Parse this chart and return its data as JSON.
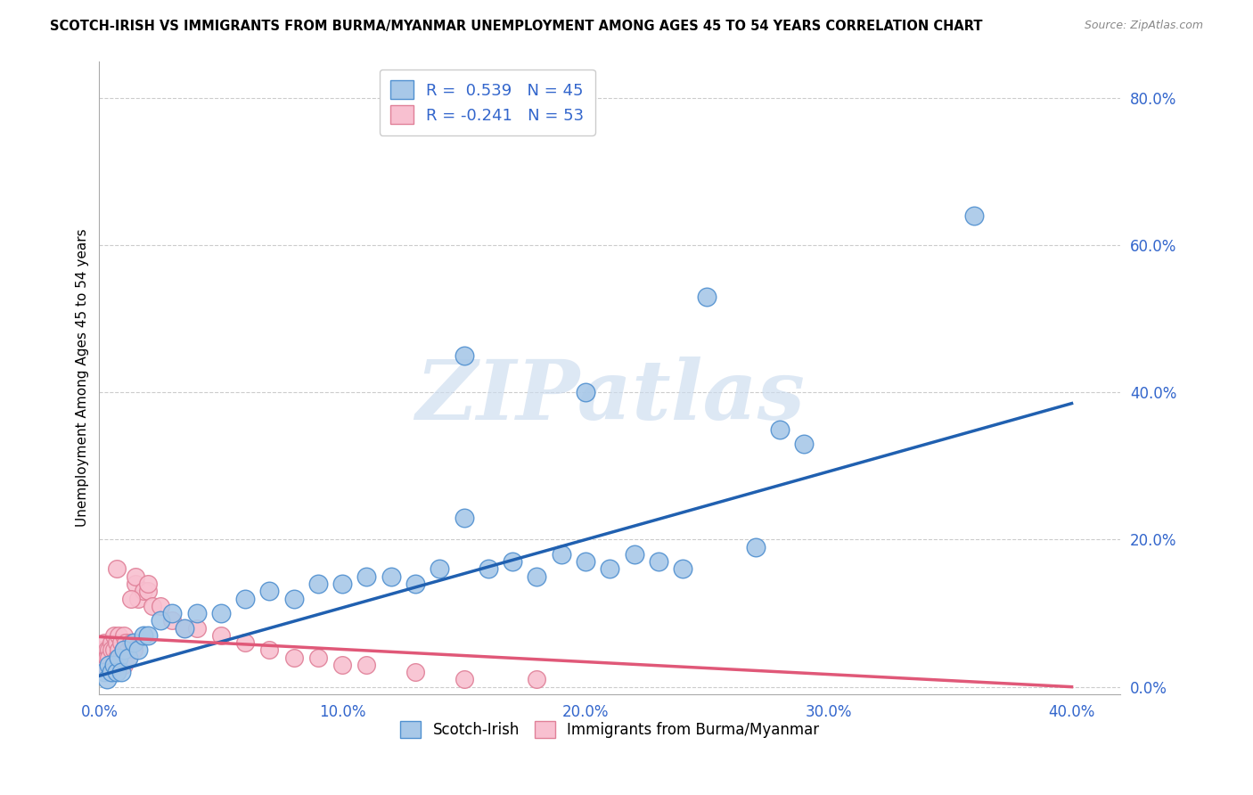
{
  "title": "SCOTCH-IRISH VS IMMIGRANTS FROM BURMA/MYANMAR UNEMPLOYMENT AMONG AGES 45 TO 54 YEARS CORRELATION CHART",
  "source": "Source: ZipAtlas.com",
  "ylabel": "Unemployment Among Ages 45 to 54 years",
  "xlim": [
    0.0,
    0.42
  ],
  "ylim": [
    -0.01,
    0.85
  ],
  "xticks": [
    0.0,
    0.1,
    0.2,
    0.3,
    0.4
  ],
  "yticks_right": [
    0.0,
    0.2,
    0.4,
    0.6,
    0.8
  ],
  "blue_R": 0.539,
  "blue_N": 45,
  "pink_R": -0.241,
  "pink_N": 53,
  "blue_color": "#a8c8e8",
  "blue_edge_color": "#5090d0",
  "blue_line_color": "#2060b0",
  "pink_color": "#f8c0d0",
  "pink_edge_color": "#e08098",
  "pink_line_color": "#e05878",
  "watermark": "ZIPatlas",
  "blue_scatter_x": [
    0.002,
    0.003,
    0.004,
    0.005,
    0.006,
    0.007,
    0.008,
    0.009,
    0.01,
    0.012,
    0.014,
    0.016,
    0.018,
    0.02,
    0.025,
    0.03,
    0.035,
    0.04,
    0.05,
    0.06,
    0.07,
    0.08,
    0.09,
    0.1,
    0.11,
    0.12,
    0.13,
    0.14,
    0.15,
    0.16,
    0.17,
    0.18,
    0.19,
    0.2,
    0.21,
    0.22,
    0.23,
    0.24,
    0.27,
    0.29,
    0.15,
    0.2,
    0.25,
    0.28,
    0.36
  ],
  "blue_scatter_y": [
    0.02,
    0.01,
    0.03,
    0.02,
    0.03,
    0.02,
    0.04,
    0.02,
    0.05,
    0.04,
    0.06,
    0.05,
    0.07,
    0.07,
    0.09,
    0.1,
    0.08,
    0.1,
    0.1,
    0.12,
    0.13,
    0.12,
    0.14,
    0.14,
    0.15,
    0.15,
    0.14,
    0.16,
    0.23,
    0.16,
    0.17,
    0.15,
    0.18,
    0.17,
    0.16,
    0.18,
    0.17,
    0.16,
    0.19,
    0.33,
    0.45,
    0.4,
    0.53,
    0.35,
    0.64
  ],
  "pink_scatter_x": [
    0.001,
    0.001,
    0.001,
    0.002,
    0.002,
    0.002,
    0.002,
    0.003,
    0.003,
    0.003,
    0.004,
    0.004,
    0.005,
    0.005,
    0.006,
    0.006,
    0.007,
    0.007,
    0.008,
    0.008,
    0.009,
    0.009,
    0.01,
    0.01,
    0.01,
    0.011,
    0.012,
    0.012,
    0.013,
    0.014,
    0.015,
    0.015,
    0.016,
    0.018,
    0.02,
    0.022,
    0.025,
    0.03,
    0.035,
    0.04,
    0.05,
    0.06,
    0.07,
    0.08,
    0.09,
    0.1,
    0.11,
    0.13,
    0.15,
    0.18,
    0.007,
    0.013,
    0.02
  ],
  "pink_scatter_y": [
    0.04,
    0.05,
    0.03,
    0.05,
    0.04,
    0.06,
    0.03,
    0.04,
    0.05,
    0.04,
    0.05,
    0.04,
    0.06,
    0.05,
    0.07,
    0.05,
    0.06,
    0.04,
    0.07,
    0.05,
    0.06,
    0.04,
    0.07,
    0.05,
    0.03,
    0.06,
    0.05,
    0.04,
    0.06,
    0.05,
    0.14,
    0.15,
    0.12,
    0.13,
    0.13,
    0.11,
    0.11,
    0.09,
    0.08,
    0.08,
    0.07,
    0.06,
    0.05,
    0.04,
    0.04,
    0.03,
    0.03,
    0.02,
    0.01,
    0.01,
    0.16,
    0.12,
    0.14
  ],
  "blue_line_x0": 0.0,
  "blue_line_x1": 0.4,
  "blue_line_y0": 0.015,
  "blue_line_y1": 0.385,
  "pink_line_x0": 0.0,
  "pink_line_x1": 0.4,
  "pink_line_y0": 0.068,
  "pink_line_y1": 0.0
}
